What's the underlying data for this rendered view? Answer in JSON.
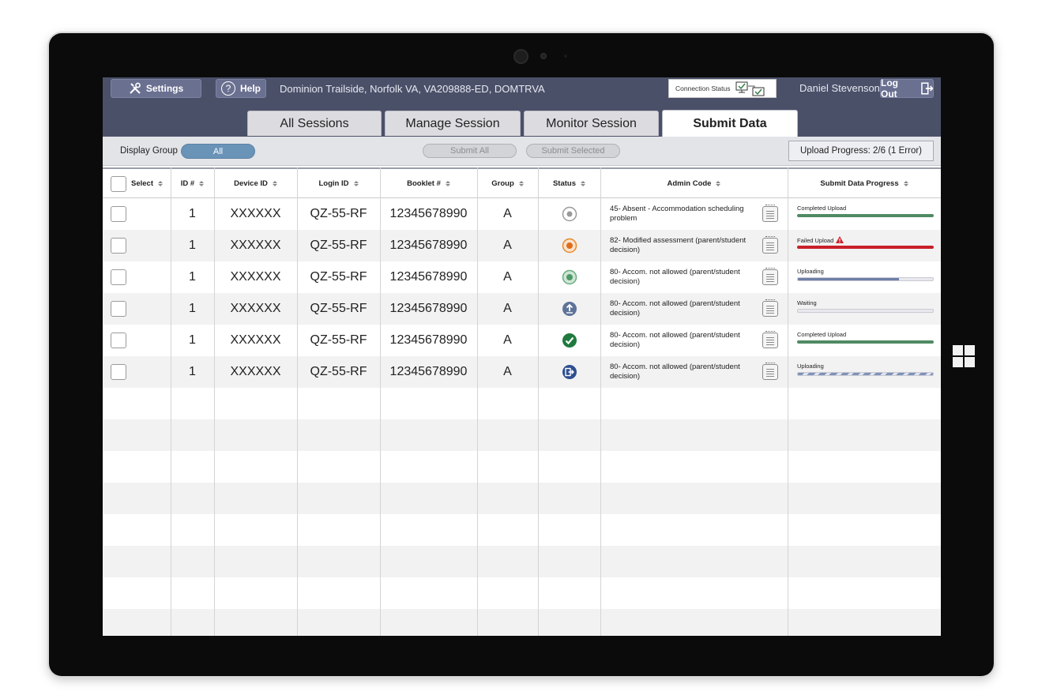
{
  "header": {
    "settings_label": "Settings",
    "help_label": "Help",
    "school": "Dominion Trailside, Norfolk VA, VA209888-ED, DOMTRVA",
    "connection_label": "Connection Status",
    "user_name": "Daniel Stevenson",
    "logout_label": "Log Out"
  },
  "tabs": [
    {
      "label": "All Sessions"
    },
    {
      "label": "Manage Session"
    },
    {
      "label": "Monitor Session"
    },
    {
      "label": "Submit Data"
    }
  ],
  "toolbar": {
    "display_group_label": "Display Group",
    "group_value": "All",
    "submit_all": "Submit All",
    "submit_selected": "Submit Selected",
    "upload_progress": "Upload Progress:  2/6 (1 Error)"
  },
  "columns": [
    "Select",
    "ID #",
    "Device ID",
    "Login ID",
    "Booklet #",
    "Group",
    "Status",
    "Admin Code",
    "Submit Data Progress"
  ],
  "rows": [
    {
      "id": "1",
      "device": "XXXXXX",
      "login": "QZ-55-RF",
      "booklet": "12345678990",
      "group": "A",
      "status": "not-started",
      "admin": "45- Absent - Accommodation scheduling problem",
      "progress_label": "Completed Upload",
      "progress": 1.0,
      "bar_color": "#4f8a63"
    },
    {
      "id": "1",
      "device": "XXXXXX",
      "login": "QZ-55-RF",
      "booklet": "12345678990",
      "group": "A",
      "status": "in-progress-orange",
      "admin": "82- Modified assessment (parent/student decision)",
      "progress_label": "Failed Upload",
      "progress": 1.0,
      "bar_color": "#c8202a"
    },
    {
      "id": "1",
      "device": "XXXXXX",
      "login": "QZ-55-RF",
      "booklet": "12345678990",
      "group": "A",
      "status": "in-progress-green",
      "admin": "80- Accom. not allowed (parent/student decision)",
      "progress_label": "Uploading",
      "progress": 0.75,
      "bar_color": "#6f7fa8"
    },
    {
      "id": "1",
      "device": "XXXXXX",
      "login": "QZ-55-RF",
      "booklet": "12345678990",
      "group": "A",
      "status": "upload",
      "admin": "80- Accom. not allowed (parent/student decision)",
      "progress_label": "Waiting",
      "progress": 0.0,
      "bar_color": "#6f7fa8"
    },
    {
      "id": "1",
      "device": "XXXXXX",
      "login": "QZ-55-RF",
      "booklet": "12345678990",
      "group": "A",
      "status": "completed",
      "admin": "80- Accom. not allowed (parent/student decision)",
      "progress_label": "Completed Upload",
      "progress": 1.0,
      "bar_color": "#4f8a63"
    },
    {
      "id": "1",
      "device": "XXXXXX",
      "login": "QZ-55-RF",
      "booklet": "12345678990",
      "group": "A",
      "status": "exited",
      "admin": "80- Accom. not allowed (parent/student decision)",
      "progress_label": "Uploading",
      "progress": 1.0,
      "bar_color": "striped"
    }
  ],
  "colors": {
    "header_bg": "#4b5069",
    "pill_active": "#6a93b8",
    "completed": "#4f8a63",
    "failed": "#c8202a",
    "uploading": "#6f7fa8"
  }
}
